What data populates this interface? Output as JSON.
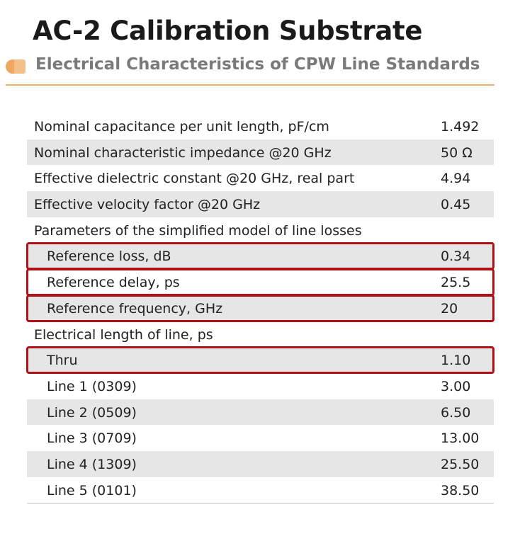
{
  "header": {
    "title": "AC-2 Calibration Substrate",
    "subtitle": "Electrical Characteristics of CPW Line Standards"
  },
  "table": {
    "rows": [
      {
        "label": "Nominal capacitance per unit length, pF/cm",
        "value": "1.492",
        "indent": false,
        "highlight": false
      },
      {
        "label": "Nominal characteristic impedance @20 GHz",
        "value": "50 Ω",
        "indent": false,
        "highlight": false
      },
      {
        "label": "Effective dielectric constant @20 GHz, real part",
        "value": "4.94",
        "indent": false,
        "highlight": false
      },
      {
        "label": "Effective velocity factor @20 GHz",
        "value": "0.45",
        "indent": false,
        "highlight": false
      },
      {
        "label": "Parameters of the simplified model of line losses",
        "indent": false,
        "highlight": false
      },
      {
        "label": "Reference loss, dB",
        "value": "0.34",
        "indent": true,
        "highlight": true
      },
      {
        "label": "Reference delay, ps",
        "value": "25.5",
        "indent": true,
        "highlight": true
      },
      {
        "label": "Reference frequency, GHz",
        "value": "20",
        "indent": true,
        "highlight": true
      },
      {
        "label": "Electrical length of line, ps",
        "indent": false,
        "highlight": false
      },
      {
        "label": "Thru",
        "value": "1.10",
        "indent": true,
        "highlight": true
      },
      {
        "label": "Line 1 (0309)",
        "value": "3.00",
        "indent": true,
        "highlight": false
      },
      {
        "label": "Line 2 (0509)",
        "value": "6.50",
        "indent": true,
        "highlight": false
      },
      {
        "label": "Line 3 (0709)",
        "value": "13.00",
        "indent": true,
        "highlight": false
      },
      {
        "label": "Line 4 (1309)",
        "value": "25.50",
        "indent": true,
        "highlight": false
      },
      {
        "label": "Line 5 (0101)",
        "value": "38.50",
        "indent": true,
        "highlight": false
      }
    ]
  }
}
